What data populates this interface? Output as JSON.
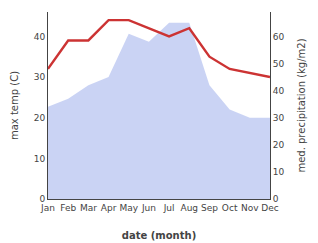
{
  "chart_data": {
    "type": "line",
    "categories": [
      "Jan",
      "Feb",
      "Mar",
      "Apr",
      "May",
      "Jun",
      "Jul",
      "Aug",
      "Sep",
      "Oct",
      "Nov",
      "Dec"
    ],
    "series": [
      {
        "type": "area",
        "axis": "y2",
        "color": "#b8c4f0",
        "values": [
          34,
          37,
          42,
          45,
          61,
          58,
          65,
          65,
          42,
          33,
          30,
          30
        ]
      },
      {
        "type": "line",
        "axis": "y",
        "color": "#cc3333",
        "values": [
          32,
          39,
          39,
          44,
          44,
          42,
          40,
          42,
          35,
          32,
          31,
          30
        ]
      }
    ],
    "xlabel": "date (month)",
    "ylabel": "max temp (C)",
    "y2label": "med. precipitation (kg/m2)",
    "ylim": [
      0,
      46
    ],
    "yticks": [
      0,
      10,
      20,
      30,
      40
    ],
    "y2lim": [
      0,
      69
    ],
    "y2ticks": [
      0,
      10,
      20,
      30,
      40,
      50,
      60
    ],
    "grid": false
  }
}
